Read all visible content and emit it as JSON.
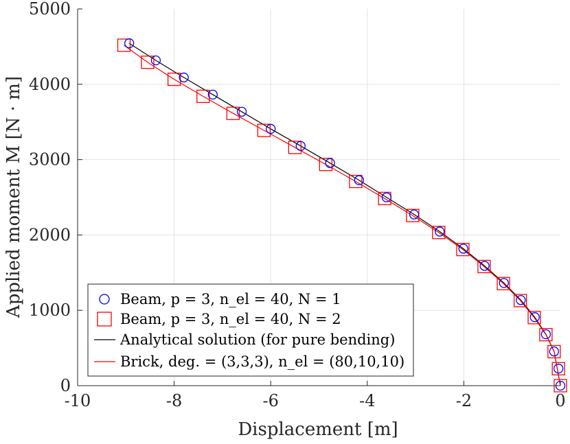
{
  "chart_data": {
    "type": "line",
    "title": "",
    "xlabel": "Displacement [m]",
    "ylabel": "Applied moment M [N · m]",
    "xlim": [
      -10,
      0
    ],
    "ylim": [
      0,
      5000
    ],
    "grid": true,
    "x_ticks": [
      -10,
      -8,
      -6,
      -4,
      -2,
      0
    ],
    "y_ticks": [
      0,
      1000,
      2000,
      3000,
      4000,
      5000
    ],
    "x_tick_labels": [
      "-10",
      "-8",
      "-6",
      "-4",
      "-2",
      "0"
    ],
    "y_tick_labels": [
      "0",
      "1000",
      "2000",
      "3000",
      "4000",
      "5000"
    ],
    "legend_position": "bottom-left",
    "legend": [
      "Beam, p = 3, n_el = 40, N = 1",
      "Beam, p = 3, n_el = 40, N = 2",
      "Analytical solution (for pure bending)",
      "Brick, deg. = (3,3,3), n_el = (80,10,10)"
    ],
    "series": [
      {
        "name": "Beam, p = 3, n_el = 40, N = 1",
        "style": "markers-circle",
        "color": "#0000ff",
        "x": [
          0,
          -0.04,
          -0.13,
          -0.3,
          -0.53,
          -0.82,
          -1.17,
          -1.57,
          -2.01,
          -2.5,
          -3.03,
          -3.6,
          -4.17,
          -4.77,
          -5.38,
          -6.0,
          -6.6,
          -7.2,
          -7.8,
          -8.38,
          -8.93
        ],
        "y": [
          0,
          227,
          454,
          682,
          909,
          1136,
          1363,
          1590,
          1818,
          2045,
          2272,
          2499,
          2727,
          2954,
          3181,
          3408,
          3636,
          3863,
          4090,
          4317,
          4544
        ]
      },
      {
        "name": "Beam, p = 3, n_el = 40, N = 2",
        "style": "markers-square",
        "color": "#ff0000",
        "x": [
          0,
          -0.04,
          -0.13,
          -0.3,
          -0.54,
          -0.83,
          -1.18,
          -1.58,
          -2.02,
          -2.52,
          -3.06,
          -3.64,
          -4.24,
          -4.86,
          -5.5,
          -6.14,
          -6.78,
          -7.4,
          -8.0,
          -8.55,
          -9.04
        ],
        "y": [
          0,
          225,
          451,
          677,
          903,
          1129,
          1355,
          1581,
          1807,
          2033,
          2258,
          2484,
          2710,
          2936,
          3162,
          3388,
          3614,
          3840,
          4066,
          4292,
          4518
        ]
      },
      {
        "name": "Analytical solution (for pure bending)",
        "style": "line",
        "color": "#000000",
        "x": [
          0,
          -0.13,
          -0.3,
          -0.53,
          -0.82,
          -1.17,
          -1.57,
          -2.01,
          -2.5,
          -3.03,
          -3.6,
          -4.17,
          -4.77,
          -5.38,
          -6.0,
          -6.6,
          -7.2,
          -7.8,
          -8.38,
          -8.93
        ],
        "y": [
          0,
          454,
          682,
          909,
          1136,
          1363,
          1590,
          1818,
          2045,
          2272,
          2499,
          2727,
          2954,
          3181,
          3408,
          3636,
          3863,
          4090,
          4317,
          4544
        ]
      },
      {
        "name": "Brick, deg. = (3,3,3), n_el = (80,10,10)",
        "style": "line",
        "color": "#ff0000",
        "x": [
          0,
          -0.13,
          -0.3,
          -0.54,
          -0.83,
          -1.18,
          -1.58,
          -2.02,
          -2.52,
          -3.06,
          -3.64,
          -4.24,
          -4.86,
          -5.5,
          -6.14,
          -6.78,
          -7.4,
          -8.0,
          -8.55,
          -9.04
        ],
        "y": [
          0,
          451,
          677,
          903,
          1129,
          1355,
          1581,
          1807,
          2033,
          2258,
          2484,
          2710,
          2936,
          3162,
          3388,
          3614,
          3840,
          4066,
          4292,
          4518
        ]
      }
    ]
  }
}
